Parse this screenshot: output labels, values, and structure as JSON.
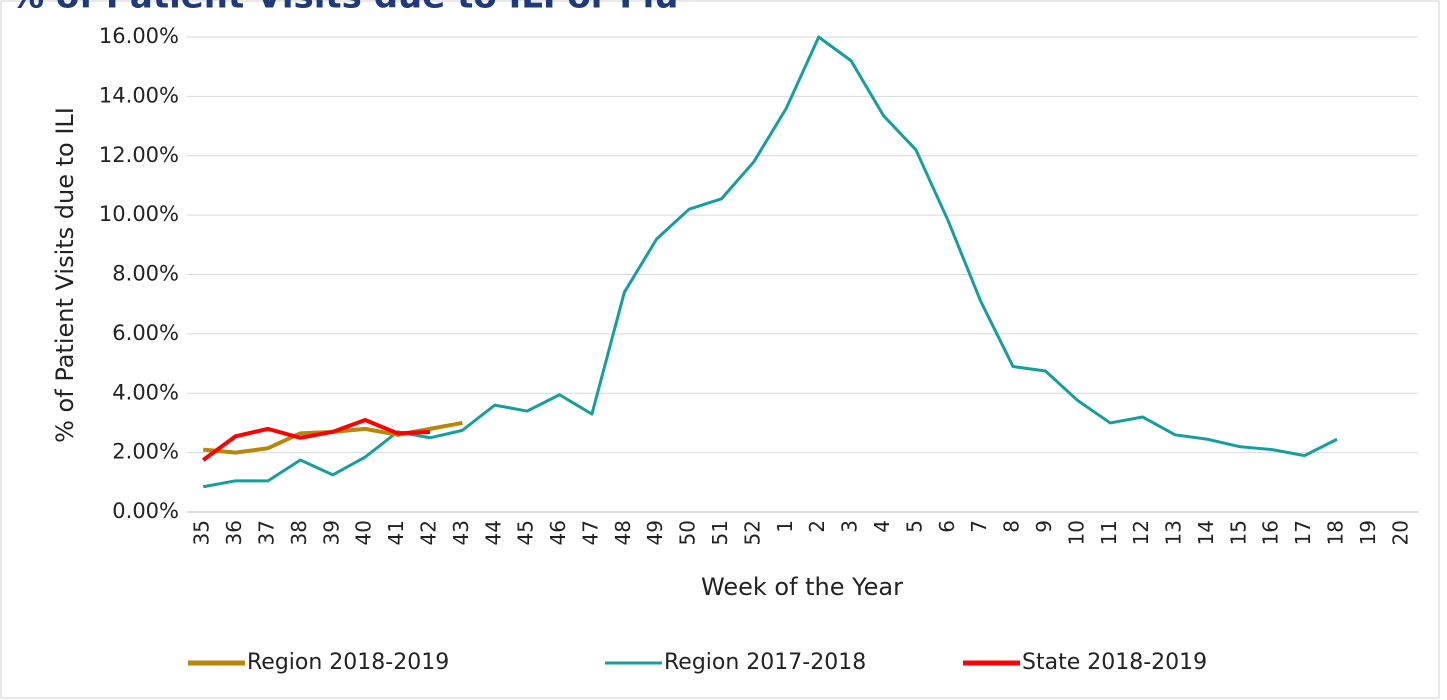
{
  "chart_data": {
    "type": "line",
    "title": "% of Patient Visits due to ILI or Flu",
    "x_label": "Week of the Year",
    "y_label": "% of Patient Visits due to ILI",
    "categories": [
      "35",
      "36",
      "37",
      "38",
      "39",
      "40",
      "41",
      "42",
      "43",
      "44",
      "45",
      "46",
      "47",
      "48",
      "49",
      "50",
      "51",
      "52",
      "1",
      "2",
      "3",
      "4",
      "5",
      "6",
      "7",
      "8",
      "9",
      "10",
      "11",
      "12",
      "13",
      "14",
      "15",
      "16",
      "17",
      "18",
      "19",
      "20"
    ],
    "series": [
      {
        "name": "Region 2018-2019",
        "color": "#b8860b",
        "values": [
          2.1,
          2.0,
          2.15,
          2.65,
          2.7,
          2.8,
          2.6,
          2.8,
          3.0,
          null,
          null,
          null,
          null,
          null,
          null,
          null,
          null,
          null,
          null,
          null,
          null,
          null,
          null,
          null,
          null,
          null,
          null,
          null,
          null,
          null,
          null,
          null,
          null,
          null,
          null,
          null,
          null,
          null
        ]
      },
      {
        "name": "Region 2017-2018",
        "color": "#169e9e",
        "values": [
          0.85,
          1.05,
          1.05,
          1.75,
          1.25,
          1.85,
          2.7,
          2.5,
          2.75,
          3.6,
          3.4,
          3.95,
          3.3,
          7.4,
          9.2,
          10.2,
          10.55,
          11.8,
          13.6,
          16.0,
          15.2,
          13.35,
          12.2,
          9.8,
          7.1,
          4.9,
          4.75,
          3.75,
          3.0,
          3.2,
          2.6,
          2.45,
          2.2,
          2.1,
          1.9,
          2.45,
          null,
          null
        ]
      },
      {
        "name": "State 2018-2019",
        "color": "#ff0000",
        "values": [
          1.75,
          2.55,
          2.8,
          2.5,
          2.7,
          3.1,
          2.65,
          2.7,
          null,
          null,
          null,
          null,
          null,
          null,
          null,
          null,
          null,
          null,
          null,
          null,
          null,
          null,
          null,
          null,
          null,
          null,
          null,
          null,
          null,
          null,
          null,
          null,
          null,
          null,
          null,
          null,
          null,
          null
        ]
      }
    ],
    "ylim": [
      0,
      16
    ],
    "yticks": [
      {
        "value": 0,
        "label": "0.00%"
      },
      {
        "value": 2,
        "label": "2.00%"
      },
      {
        "value": 4,
        "label": "4.00%"
      },
      {
        "value": 6,
        "label": "6.00%"
      },
      {
        "value": 8,
        "label": "8.00%"
      },
      {
        "value": 10,
        "label": "10.00%"
      },
      {
        "value": 12,
        "label": "12.00%"
      },
      {
        "value": 14,
        "label": "14.00%"
      },
      {
        "value": 16,
        "label": "16.00%"
      }
    ],
    "grid": true,
    "legend": "bottom"
  }
}
